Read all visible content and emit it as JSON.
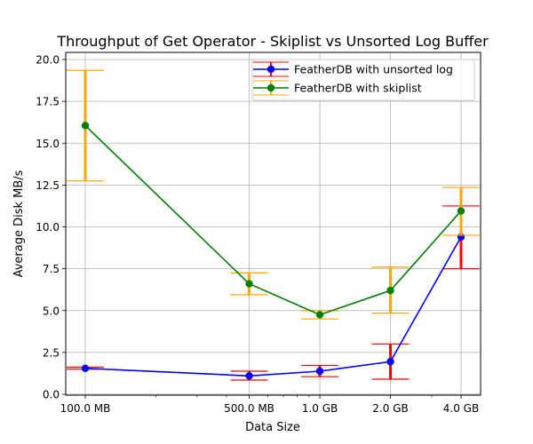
{
  "chart_data": {
    "type": "line",
    "title": "Throughput of Get Operator  - Skiplist vs Unsorted Log Buffer",
    "xlabel": "Data Size",
    "ylabel": "Average Disk MB/s",
    "x_scale": "log",
    "x_values_mb": [
      100,
      500,
      1000,
      2000,
      4000
    ],
    "x_tick_labels": [
      "100.0 MB",
      "500.0 MB",
      "1.0 GB",
      "2.0 GB",
      "4.0 GB"
    ],
    "ylim": [
      0,
      20.3
    ],
    "y_ticks": [
      0.0,
      2.5,
      5.0,
      7.5,
      10.0,
      12.5,
      15.0,
      17.5,
      20.0
    ],
    "y_tick_labels": [
      "0.0",
      "2.5",
      "5.0",
      "7.5",
      "10.0",
      "12.5",
      "15.0",
      "17.5",
      "20.0"
    ],
    "grid": true,
    "legend_position": "top-right",
    "series": [
      {
        "name": "FeatherDB with unsorted log",
        "color": "#0000ff",
        "error_color": "#ff0000",
        "values": [
          1.55,
          1.1,
          1.38,
          1.95,
          9.4
        ],
        "error_low": [
          1.5,
          0.85,
          1.05,
          0.9,
          7.5
        ],
        "error_high": [
          1.62,
          1.38,
          1.72,
          3.0,
          11.25
        ]
      },
      {
        "name": "FeatherDB with skiplist",
        "color": "#008000",
        "error_color": "#ffa500",
        "values": [
          16.05,
          6.6,
          4.75,
          6.2,
          10.95
        ],
        "error_low": [
          12.75,
          5.95,
          4.5,
          4.85,
          9.5
        ],
        "error_high": [
          19.35,
          7.25,
          5.0,
          7.6,
          12.35
        ]
      }
    ]
  }
}
